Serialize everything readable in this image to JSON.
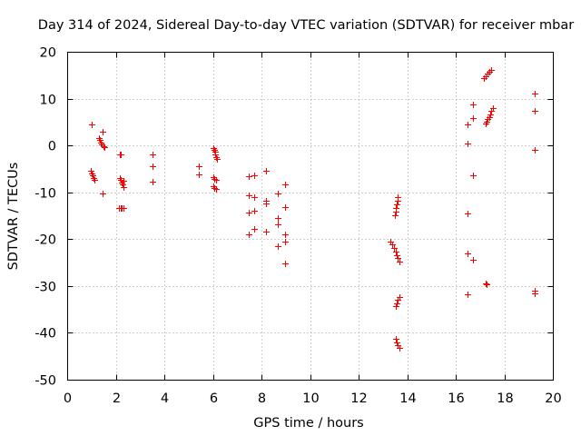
{
  "chart_data": {
    "type": "scatter",
    "title": "Day 314 of 2024, Sidereal Day-to-day VTEC variation (SDTVAR) for receiver mbar",
    "xlabel": "GPS time / hours",
    "ylabel": "SDTVAR / TECUs",
    "xlim": [
      0,
      20
    ],
    "ylim": [
      -50,
      20
    ],
    "xticks": [
      0,
      2,
      4,
      6,
      8,
      10,
      12,
      14,
      16,
      18,
      20
    ],
    "yticks": [
      -50,
      -40,
      -30,
      -20,
      -10,
      0,
      10,
      20
    ],
    "grid": true,
    "marker": "plus",
    "color": "#ff0000",
    "series": [
      {
        "name": "SDTVAR",
        "points": [
          [
            0.98,
            4.6
          ],
          [
            0.95,
            -5.4
          ],
          [
            1.0,
            -5.9
          ],
          [
            1.04,
            -6.3
          ],
          [
            1.08,
            -6.8
          ],
          [
            1.12,
            -7.2
          ],
          [
            1.3,
            1.6
          ],
          [
            1.34,
            1.2
          ],
          [
            1.38,
            0.8
          ],
          [
            1.42,
            0.4
          ],
          [
            1.46,
            0.0
          ],
          [
            1.5,
            -0.3
          ],
          [
            1.45,
            3.0
          ],
          [
            1.45,
            -10.2
          ],
          [
            2.15,
            -1.8
          ],
          [
            2.18,
            -1.9
          ],
          [
            2.15,
            -6.8
          ],
          [
            2.19,
            -7.3
          ],
          [
            2.23,
            -7.8
          ],
          [
            2.27,
            -8.3
          ],
          [
            2.31,
            -8.8
          ],
          [
            2.3,
            -7.4
          ],
          [
            2.12,
            -13.2
          ],
          [
            2.18,
            -13.2
          ],
          [
            2.24,
            -13.3
          ],
          [
            2.29,
            -13.2
          ],
          [
            3.5,
            -1.9
          ],
          [
            3.5,
            -4.4
          ],
          [
            3.5,
            -7.6
          ],
          [
            5.4,
            -4.3
          ],
          [
            5.4,
            -6.1
          ],
          [
            6.0,
            -0.4
          ],
          [
            6.03,
            -0.8
          ],
          [
            6.06,
            -1.3
          ],
          [
            6.09,
            -1.8
          ],
          [
            6.12,
            -2.3
          ],
          [
            6.15,
            -2.7
          ],
          [
            6.0,
            -6.6
          ],
          [
            6.05,
            -7.0
          ],
          [
            6.1,
            -7.3
          ],
          [
            6.0,
            -8.6
          ],
          [
            6.05,
            -8.9
          ],
          [
            6.1,
            -9.2
          ],
          [
            7.45,
            -6.4
          ],
          [
            7.7,
            -6.2
          ],
          [
            8.15,
            -5.4
          ],
          [
            7.45,
            -10.6
          ],
          [
            7.7,
            -11.0
          ],
          [
            8.15,
            -11.8
          ],
          [
            7.45,
            -14.3
          ],
          [
            7.7,
            -13.8
          ],
          [
            8.15,
            -12.3
          ],
          [
            7.45,
            -18.9
          ],
          [
            7.7,
            -17.8
          ],
          [
            8.15,
            -18.3
          ],
          [
            8.65,
            -10.1
          ],
          [
            8.65,
            -15.4
          ],
          [
            8.65,
            -16.7
          ],
          [
            8.65,
            -21.4
          ],
          [
            8.95,
            -8.2
          ],
          [
            8.95,
            -13.0
          ],
          [
            8.95,
            -18.8
          ],
          [
            8.95,
            -20.5
          ],
          [
            8.95,
            -25.1
          ],
          [
            13.6,
            -10.9
          ],
          [
            13.58,
            -11.7
          ],
          [
            13.55,
            -12.5
          ],
          [
            13.52,
            -13.3
          ],
          [
            13.5,
            -14.1
          ],
          [
            13.47,
            -14.9
          ],
          [
            13.3,
            -20.5
          ],
          [
            13.38,
            -21.1
          ],
          [
            13.45,
            -21.8
          ],
          [
            13.5,
            -22.6
          ],
          [
            13.55,
            -23.3
          ],
          [
            13.6,
            -24.0
          ],
          [
            13.65,
            -24.6
          ],
          [
            13.65,
            -32.2
          ],
          [
            13.6,
            -32.9
          ],
          [
            13.55,
            -33.6
          ],
          [
            13.5,
            -34.2
          ],
          [
            13.5,
            -41.2
          ],
          [
            13.55,
            -41.9
          ],
          [
            13.6,
            -42.5
          ],
          [
            13.65,
            -43.1
          ],
          [
            16.45,
            4.5
          ],
          [
            16.45,
            0.6
          ],
          [
            16.45,
            -14.5
          ],
          [
            16.45,
            -23.0
          ],
          [
            16.45,
            -31.7
          ],
          [
            16.7,
            8.8
          ],
          [
            16.7,
            5.9
          ],
          [
            16.7,
            -6.2
          ],
          [
            16.7,
            -24.3
          ],
          [
            17.15,
            14.4
          ],
          [
            17.22,
            14.9
          ],
          [
            17.29,
            15.4
          ],
          [
            17.36,
            15.9
          ],
          [
            17.43,
            16.3
          ],
          [
            17.2,
            4.7
          ],
          [
            17.25,
            5.2
          ],
          [
            17.3,
            5.7
          ],
          [
            17.35,
            6.2
          ],
          [
            17.4,
            6.7
          ],
          [
            17.45,
            7.4
          ],
          [
            17.5,
            8.0
          ],
          [
            17.2,
            -29.4
          ],
          [
            17.25,
            -29.6
          ],
          [
            19.25,
            11.1
          ],
          [
            19.25,
            7.4
          ],
          [
            19.25,
            -0.9
          ],
          [
            19.25,
            -30.9
          ],
          [
            19.25,
            -31.4
          ]
        ]
      }
    ]
  }
}
